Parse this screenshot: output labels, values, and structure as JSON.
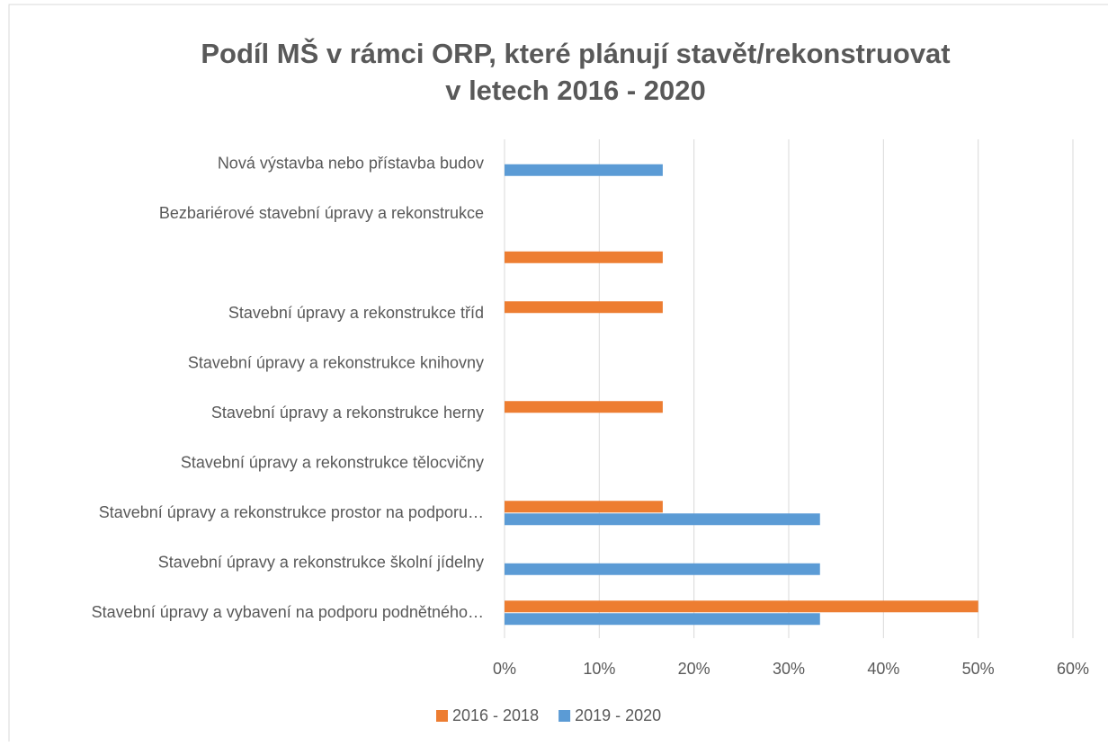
{
  "chart_data": {
    "type": "hbar",
    "title": [
      "Podíl MŠ v rámci ORP, které plánují stavět/rekonstruovat",
      "v letech 2016 - 2020"
    ],
    "categories": [
      "Nová výstavba nebo přístavba budov",
      "Bezbariérové stavební úpravy a rekonstrukce",
      null,
      "Stavební úpravy a rekonstrukce tříd",
      "Stavební úpravy a rekonstrukce knihovny",
      "Stavební úpravy a rekonstrukce herny",
      "Stavební úpravy a rekonstrukce tělocvičny",
      "Stavební úpravy a rekonstrukce prostor na podporu…",
      "Stavební úpravy a rekonstrukce školní jídelny",
      "Stavební úpravy a vybavení na podporu podnětného…"
    ],
    "series": [
      {
        "name": "2016 - 2018",
        "color": "#ed7d31",
        "values": [
          0,
          0,
          16.7,
          16.7,
          0,
          16.7,
          0,
          16.7,
          0,
          50
        ]
      },
      {
        "name": "2019 - 2020",
        "color": "#5b9bd5",
        "values": [
          16.7,
          0,
          0,
          0,
          0,
          0,
          0,
          33.3,
          33.3,
          33.3
        ]
      }
    ],
    "xlim": [
      0,
      60
    ],
    "xticks": [
      {
        "value": 0,
        "label": "0%"
      },
      {
        "value": 10,
        "label": "10%"
      },
      {
        "value": 20,
        "label": "20%"
      },
      {
        "value": 30,
        "label": "30%"
      },
      {
        "value": 40,
        "label": "40%"
      },
      {
        "value": 50,
        "label": "50%"
      },
      {
        "value": 60,
        "label": "60%"
      }
    ],
    "grid": true,
    "legend": "bottom"
  }
}
